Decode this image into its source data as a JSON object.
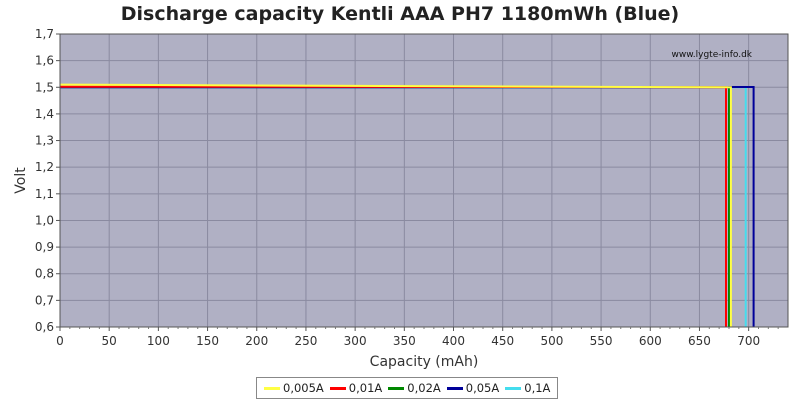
{
  "chart_data": {
    "type": "line",
    "title": "Discharge capacity Kentli AAA PH7 1180mWh (Blue)",
    "xlabel": "Capacity (mAh)",
    "ylabel": "Volt",
    "xlim": [
      0,
      740
    ],
    "ylim": [
      0.6,
      1.7
    ],
    "xticks": [
      0,
      50,
      100,
      150,
      200,
      250,
      300,
      350,
      400,
      450,
      500,
      550,
      600,
      650,
      700
    ],
    "yticks": [
      "0,6",
      "0,7",
      "0,8",
      "0,9",
      "1,0",
      "1,1",
      "1,2",
      "1,3",
      "1,4",
      "1,5",
      "1,6",
      "1,7"
    ],
    "watermark": "www.lygte-info.dk",
    "grid": true,
    "legend_position": "bottom",
    "plot_background": "#b0b0c4",
    "series": [
      {
        "name": "0,005A",
        "color": "#ffff44",
        "x": [
          0,
          300,
          682,
          682
        ],
        "y": [
          1.51,
          1.505,
          1.5,
          0.6
        ]
      },
      {
        "name": "0,01A",
        "color": "#ff0000",
        "x": [
          0,
          215,
          677,
          677
        ],
        "y": [
          1.502,
          1.502,
          1.5,
          0.6
        ]
      },
      {
        "name": "0,02A",
        "color": "#008800",
        "x": [
          0,
          680,
          680
        ],
        "y": [
          1.5,
          1.5,
          0.6
        ]
      },
      {
        "name": "0,05A",
        "color": "#000099",
        "x": [
          0,
          680,
          680,
          705,
          705
        ],
        "y": [
          1.5,
          1.5,
          1.501,
          1.501,
          0.6
        ]
      },
      {
        "name": "0,1A",
        "color": "#44ddee",
        "x": [
          0,
          680,
          697,
          697
        ],
        "y": [
          1.5,
          1.5,
          1.5,
          0.6
        ]
      }
    ]
  }
}
